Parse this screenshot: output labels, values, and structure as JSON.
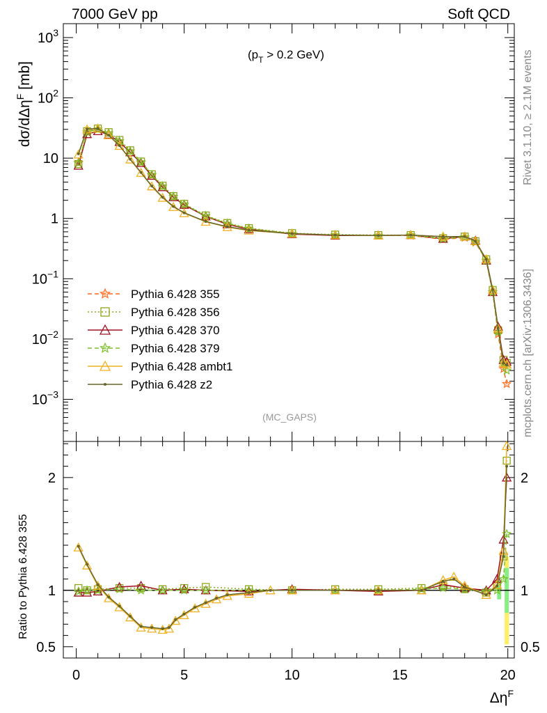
{
  "header": {
    "left_title": "7000 GeV pp",
    "right_title": "Soft QCD"
  },
  "side_labels": {
    "rivet": "Rivet 3.1.10, ≥ 2.1M events",
    "source": "mcplots.cern.ch [arXiv:1306.3436]"
  },
  "chart_data": [
    {
      "type": "line",
      "annotation": "(p_T > 0.2 GeV)",
      "watermark": "(MC_GAPS)",
      "ylabel": "dσ/dΔη^F [mb]",
      "yscale": "log",
      "ylim": [
        0.0002,
        1700
      ],
      "xlim": [
        -0.6,
        20.3
      ],
      "y_tick_labels": [
        "10^3",
        "10^2",
        "10",
        "1",
        "10^-1",
        "10^-2",
        "10^-3"
      ],
      "legend_position": "lower-left",
      "series": [
        {
          "name": "Pythia 6.428 355",
          "color": "#ff6a1a",
          "marker": "star",
          "dash": "dashed",
          "x": [
            0.1,
            0.5,
            1.0,
            1.5,
            2.0,
            2.5,
            3.0,
            3.5,
            4.0,
            4.5,
            5.0,
            6.0,
            7.0,
            8.0,
            10.0,
            12.0,
            14.0,
            15.5,
            17.0,
            18.0,
            18.5,
            19.0,
            19.3,
            19.55,
            19.8,
            19.95
          ],
          "y": [
            8.5,
            27,
            30,
            26,
            19,
            13,
            8.5,
            5.2,
            3.4,
            2.3,
            1.7,
            1.1,
            0.82,
            0.68,
            0.56,
            0.53,
            0.52,
            0.52,
            0.45,
            0.48,
            0.4,
            0.2,
            0.06,
            0.012,
            0.0032,
            0.0018
          ]
        },
        {
          "name": "Pythia 6.428 356",
          "color": "#8fa51a",
          "marker": "square",
          "dash": "dotted",
          "x": [
            0.1,
            0.5,
            1.0,
            1.5,
            2.0,
            2.5,
            3.0,
            3.5,
            4.0,
            4.5,
            5.0,
            6.0,
            7.0,
            8.0,
            10.0,
            12.0,
            14.0,
            15.5,
            17.0,
            18.0,
            18.5,
            19.0,
            19.3,
            19.55,
            19.8,
            19.95
          ],
          "y": [
            8.0,
            28,
            31,
            27,
            20,
            13.5,
            8.8,
            5.4,
            3.5,
            2.35,
            1.75,
            1.12,
            0.84,
            0.69,
            0.57,
            0.54,
            0.53,
            0.53,
            0.47,
            0.5,
            0.42,
            0.21,
            0.065,
            0.014,
            0.0045,
            0.004
          ]
        },
        {
          "name": "Pythia 6.428 370",
          "color": "#a01020",
          "marker": "triangle",
          "dash": "solid",
          "x": [
            0.1,
            0.5,
            1.0,
            1.5,
            2.0,
            2.5,
            3.0,
            3.5,
            4.0,
            4.5,
            5.0,
            6.0,
            7.0,
            8.0,
            10.0,
            12.0,
            14.0,
            15.5,
            17.0,
            18.0,
            18.5,
            19.0,
            19.3,
            19.55,
            19.8,
            19.95
          ],
          "y": [
            7.5,
            25,
            28,
            24.5,
            18.5,
            12.5,
            8.3,
            5.1,
            3.3,
            2.25,
            1.68,
            1.08,
            0.8,
            0.66,
            0.55,
            0.52,
            0.52,
            0.53,
            0.46,
            0.5,
            0.43,
            0.2,
            0.06,
            0.016,
            0.0045,
            0.0042
          ]
        },
        {
          "name": "Pythia 6.428 379",
          "color": "#7cc02a",
          "marker": "star",
          "dash": "dashed",
          "x": [
            0.1,
            0.5,
            1.0,
            1.5,
            2.0,
            2.5,
            3.0,
            3.5,
            4.0,
            4.5,
            5.0,
            6.0,
            7.0,
            8.0,
            10.0,
            12.0,
            14.0,
            15.5,
            17.0,
            18.0,
            18.5,
            19.0,
            19.3,
            19.55,
            19.8,
            19.95
          ],
          "y": [
            8.3,
            27,
            30,
            26,
            19.2,
            13,
            8.6,
            5.3,
            3.4,
            2.3,
            1.72,
            1.1,
            0.82,
            0.68,
            0.56,
            0.53,
            0.52,
            0.53,
            0.46,
            0.49,
            0.41,
            0.2,
            0.06,
            0.013,
            0.004,
            0.003
          ]
        },
        {
          "name": "Pythia 6.428 ambt1",
          "color": "#f0b020",
          "marker": "triangle",
          "dash": "solid",
          "x": [
            0.1,
            0.5,
            1.0,
            1.5,
            2.0,
            2.5,
            3.0,
            3.5,
            4.0,
            4.5,
            5.0,
            6.0,
            7.0,
            8.0,
            10.0,
            12.0,
            14.0,
            15.5,
            17.0,
            18.0,
            18.5,
            19.0,
            19.3,
            19.55,
            19.8,
            19.95
          ],
          "y": [
            11.5,
            30,
            31,
            24,
            16,
            9.5,
            5.7,
            3.4,
            2.2,
            1.55,
            1.22,
            0.88,
            0.72,
            0.63,
            0.56,
            0.53,
            0.52,
            0.53,
            0.5,
            0.5,
            0.42,
            0.21,
            0.065,
            0.015,
            0.004,
            0.0038
          ]
        },
        {
          "name": "Pythia 6.428 z2",
          "color": "#66662a",
          "marker": "dot",
          "dash": "solid",
          "x": [
            0.1,
            0.5,
            1.0,
            1.5,
            2.0,
            2.5,
            3.0,
            3.5,
            4.0,
            4.5,
            5.0,
            6.0,
            7.0,
            8.0,
            10.0,
            12.0,
            14.0,
            15.5,
            17.0,
            18.0,
            18.5,
            19.0,
            19.3,
            19.55,
            19.8,
            19.95
          ],
          "y": [
            11.8,
            30.5,
            31,
            24,
            16.2,
            9.6,
            5.8,
            3.45,
            2.25,
            1.58,
            1.24,
            0.89,
            0.73,
            0.64,
            0.56,
            0.53,
            0.52,
            0.53,
            0.5,
            0.5,
            0.42,
            0.21,
            0.066,
            0.015,
            0.004,
            0.0037
          ]
        }
      ]
    },
    {
      "type": "line",
      "ylabel": "Ratio to Pythia 6.428 355",
      "xlabel": "Δη^F",
      "ylim": [
        0.4,
        2.32
      ],
      "xlim": [
        -0.6,
        20.3
      ],
      "x_tick_labels": [
        "0",
        "5",
        "10",
        "15",
        "20"
      ],
      "y_tick_labels": [
        "0.5",
        "1",
        "2"
      ],
      "reference_band_colors": [
        "#ffee66",
        "#88ee88"
      ],
      "series": [
        {
          "name": "Pythia 6.428 356",
          "color": "#8fa51a",
          "marker": "square",
          "dash": "dotted",
          "x": [
            0.1,
            0.5,
            1.0,
            2.0,
            3.0,
            4.0,
            5.0,
            6.0,
            8.0,
            10.0,
            12.0,
            14.0,
            16.0,
            17.0,
            18.0,
            19.0,
            19.5,
            19.8,
            19.95
          ],
          "y": [
            1.02,
            1.0,
            1.01,
            1.02,
            1.02,
            1.01,
            1.02,
            1.03,
            1.01,
            1.0,
            1.01,
            1.01,
            1.02,
            1.04,
            1.01,
            0.98,
            1.05,
            1.3,
            2.15
          ]
        },
        {
          "name": "Pythia 6.428 370",
          "color": "#a01020",
          "marker": "triangle",
          "dash": "solid",
          "x": [
            0.1,
            0.5,
            1.0,
            2.0,
            3.0,
            4.0,
            5.0,
            6.0,
            8.0,
            10.0,
            12.0,
            14.0,
            16.0,
            17.0,
            18.0,
            19.0,
            19.5,
            19.8,
            19.95
          ],
          "y": [
            0.98,
            0.98,
            0.99,
            1.03,
            1.04,
            1.0,
            1.01,
            1.0,
            0.99,
            1.01,
            1.0,
            0.99,
            1.0,
            1.05,
            1.02,
            1.0,
            1.1,
            1.45,
            2.0
          ]
        },
        {
          "name": "Pythia 6.428 379",
          "color": "#7cc02a",
          "marker": "star",
          "dash": "dashed",
          "x": [
            0.1,
            0.5,
            1.0,
            2.0,
            3.0,
            4.0,
            5.0,
            6.0,
            8.0,
            10.0,
            12.0,
            14.0,
            16.0,
            17.0,
            18.0,
            19.0,
            19.5,
            19.8,
            19.95
          ],
          "y": [
            0.99,
            1.0,
            1.0,
            1.01,
            1.0,
            1.0,
            1.0,
            1.0,
            1.0,
            1.0,
            1.0,
            1.0,
            1.01,
            1.02,
            1.01,
            0.99,
            1.0,
            1.1,
            1.5
          ]
        },
        {
          "name": "Pythia 6.428 ambt1",
          "color": "#f0b020",
          "marker": "triangle",
          "dash": "solid",
          "x": [
            0.1,
            0.5,
            1.0,
            1.5,
            2.0,
            2.5,
            3.0,
            3.5,
            4.0,
            4.3,
            4.6,
            5.0,
            5.5,
            6.0,
            6.5,
            7.0,
            8.0,
            9.0,
            10.0,
            12.0,
            14.0,
            16.0,
            17.0,
            17.5,
            18.0,
            19.0,
            19.5,
            19.8,
            19.95
          ],
          "y": [
            1.38,
            1.22,
            1.04,
            0.93,
            0.85,
            0.76,
            0.67,
            0.66,
            0.65,
            0.66,
            0.73,
            0.78,
            0.84,
            0.88,
            0.92,
            0.95,
            0.97,
            1.0,
            1.0,
            1.0,
            1.0,
            1.0,
            1.09,
            1.12,
            1.04,
            0.96,
            1.05,
            1.35,
            2.28
          ]
        },
        {
          "name": "Pythia 6.428 z2",
          "color": "#66662a",
          "marker": "dot",
          "dash": "solid",
          "x": [
            0.1,
            0.5,
            1.0,
            1.5,
            2.0,
            2.5,
            3.0,
            3.5,
            4.0,
            4.3,
            4.6,
            5.0,
            5.5,
            6.0,
            6.5,
            7.0,
            8.0,
            9.0,
            10.0,
            12.0,
            14.0,
            16.0,
            17.0,
            17.5,
            18.0,
            19.0,
            19.5,
            19.8,
            19.95
          ],
          "y": [
            1.39,
            1.23,
            1.05,
            0.94,
            0.86,
            0.77,
            0.68,
            0.67,
            0.66,
            0.67,
            0.74,
            0.79,
            0.85,
            0.89,
            0.93,
            0.96,
            0.98,
            1.0,
            1.0,
            1.0,
            1.0,
            1.0,
            1.08,
            1.1,
            1.03,
            0.96,
            1.04,
            1.3,
            2.1
          ]
        }
      ]
    }
  ]
}
